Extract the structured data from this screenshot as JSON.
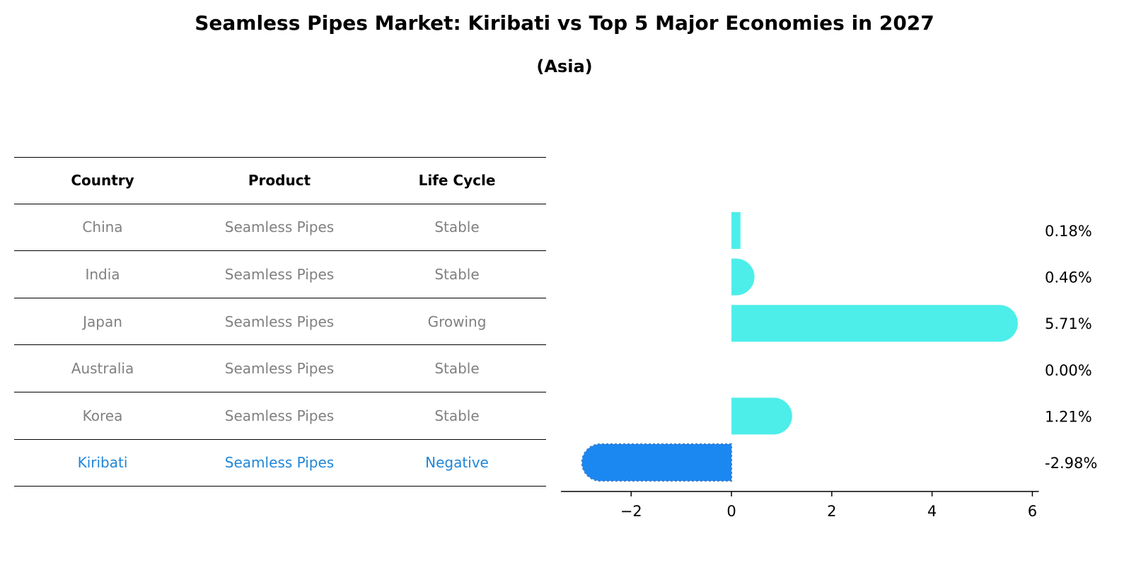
{
  "title": "Seamless Pipes Market: Kiribati vs Top 5 Major Economies in 2027",
  "subtitle": "(Asia)",
  "table": {
    "headers": [
      "Country",
      "Product",
      "Life Cycle"
    ],
    "rows": [
      [
        "China",
        "Seamless Pipes",
        "Stable"
      ],
      [
        "India",
        "Seamless Pipes",
        "Stable"
      ],
      [
        "Japan",
        "Seamless Pipes",
        "Growing"
      ],
      [
        "Australia",
        "Seamless Pipes",
        "Stable"
      ],
      [
        "Korea",
        "Seamless Pipes",
        "Stable"
      ],
      [
        "Kiribati",
        "Seamless Pipes",
        "Negative"
      ]
    ],
    "highlight_row": 5,
    "text_color": "#808080",
    "highlight_color": "#1f86d8"
  },
  "chart_data": {
    "type": "bar",
    "orientation": "horizontal",
    "categories": [
      "China",
      "India",
      "Japan",
      "Australia",
      "Korea",
      "Kiribati"
    ],
    "values": [
      0.18,
      0.46,
      5.71,
      0.0,
      1.21,
      -2.98
    ],
    "value_labels": [
      "0.18%",
      "0.46%",
      "5.71%",
      "0.00%",
      "1.21%",
      "-2.98%"
    ],
    "xlim": [
      -3.4,
      6.1
    ],
    "xticks": [
      -2,
      0,
      2,
      4,
      6
    ],
    "xtick_labels": [
      "−2",
      "0",
      "2",
      "4",
      "6"
    ],
    "grid": false,
    "colors": {
      "bar": "#4deeea",
      "highlight": "#1b87f0"
    },
    "highlight_index": 5
  }
}
